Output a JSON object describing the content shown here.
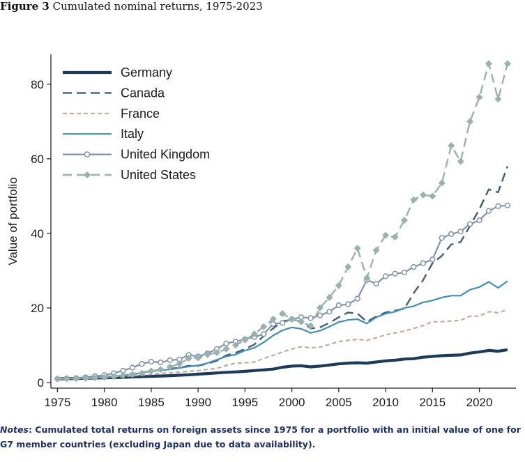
{
  "figure": {
    "label": "Figure 3",
    "title": "Cumulated nominal returns, 1975-2023"
  },
  "notes": {
    "label": "Notes",
    "text": ": Cumulated total returns on foreign assets since 1975 for a portfolio with an initial value of one for G7 member countries (excluding Japan due to data availability)."
  },
  "chart_data": {
    "type": "line",
    "title": "",
    "xlabel": "",
    "ylabel": "Value of portfolio",
    "xlim": [
      1974.3,
      2023.9
    ],
    "ylim": [
      -1.5,
      88
    ],
    "xticks": [
      1975,
      1980,
      1985,
      1990,
      1995,
      2000,
      2005,
      2010,
      2015,
      2020
    ],
    "yticks": [
      0,
      20,
      40,
      60,
      80
    ],
    "grid": false,
    "legend_position": "top-left",
    "x": [
      1975,
      1976,
      1977,
      1978,
      1979,
      1980,
      1981,
      1982,
      1983,
      1984,
      1985,
      1986,
      1987,
      1988,
      1989,
      1990,
      1991,
      1992,
      1993,
      1994,
      1995,
      1996,
      1997,
      1998,
      1999,
      2000,
      2001,
      2002,
      2003,
      2004,
      2005,
      2006,
      2007,
      2008,
      2009,
      2010,
      2011,
      2012,
      2013,
      2014,
      2015,
      2016,
      2017,
      2018,
      2019,
      2020,
      2021,
      2022,
      2023
    ],
    "series": [
      {
        "name": "Germany",
        "color": "#1b3a5c",
        "style": "solid",
        "marker": "none",
        "values": [
          1.0,
          1.05,
          1.1,
          1.15,
          1.2,
          1.27,
          1.32,
          1.4,
          1.5,
          1.58,
          1.67,
          1.76,
          1.84,
          1.95,
          2.08,
          2.25,
          2.4,
          2.58,
          2.75,
          2.85,
          3.0,
          3.2,
          3.4,
          3.6,
          4.1,
          4.4,
          4.5,
          4.2,
          4.4,
          4.7,
          5.0,
          5.2,
          5.3,
          5.2,
          5.5,
          5.8,
          6.0,
          6.3,
          6.4,
          6.8,
          7.0,
          7.2,
          7.3,
          7.4,
          7.9,
          8.2,
          8.6,
          8.4,
          8.8
        ]
      },
      {
        "name": "Canada",
        "color": "#3e5f7c",
        "style": "dash",
        "marker": "none",
        "values": [
          1.0,
          1.1,
          1.25,
          1.35,
          1.45,
          1.6,
          1.7,
          1.9,
          2.3,
          2.7,
          3.1,
          3.4,
          3.7,
          4.0,
          4.5,
          4.5,
          5.1,
          5.8,
          7.3,
          8.0,
          9.0,
          10.2,
          12.5,
          14.5,
          16.5,
          16.8,
          16.5,
          14.5,
          14.8,
          16.0,
          17.5,
          18.8,
          18.5,
          16.3,
          17.7,
          18.8,
          19.3,
          19.8,
          24.0,
          27.5,
          32.0,
          34.0,
          37.0,
          37.7,
          42.0,
          46.5,
          51.8,
          51.0,
          58.0
        ]
      },
      {
        "name": "France",
        "color": "#c4a9a3",
        "style": "shortdash",
        "marker": "none",
        "values": [
          1.0,
          1.05,
          1.12,
          1.2,
          1.3,
          1.4,
          1.5,
          1.62,
          1.8,
          2.0,
          2.2,
          2.5,
          2.6,
          2.8,
          3.0,
          3.2,
          3.5,
          3.8,
          4.6,
          5.2,
          5.3,
          5.5,
          6.5,
          7.3,
          8.2,
          9.0,
          9.6,
          9.3,
          9.5,
          10.2,
          11.0,
          11.3,
          11.6,
          11.3,
          12.0,
          12.8,
          13.3,
          13.8,
          14.5,
          15.3,
          16.3,
          16.3,
          16.5,
          16.7,
          17.8,
          17.8,
          19.0,
          18.7,
          19.5
        ]
      },
      {
        "name": "Italy",
        "color": "#3b8fba",
        "style": "solid",
        "marker": "none",
        "values": [
          1.0,
          1.08,
          1.16,
          1.25,
          1.35,
          1.5,
          1.7,
          1.9,
          2.2,
          2.6,
          3.0,
          3.3,
          3.5,
          3.9,
          4.3,
          4.6,
          5.2,
          6.1,
          7.0,
          7.5,
          8.6,
          9.3,
          10.8,
          12.6,
          14.0,
          14.8,
          14.4,
          13.3,
          13.9,
          15.0,
          16.2,
          16.8,
          17.0,
          15.8,
          17.5,
          18.5,
          19.0,
          20.0,
          20.5,
          21.5,
          22.0,
          22.8,
          23.3,
          23.3,
          24.9,
          25.6,
          27.0,
          25.4,
          27.2
        ]
      },
      {
        "name": "United Kingdom",
        "color": "#8292ae",
        "style": "solid",
        "marker": "circle",
        "values": [
          1.0,
          1.1,
          1.2,
          1.4,
          1.7,
          2.0,
          2.5,
          3.2,
          4.0,
          5.0,
          5.6,
          5.4,
          6.0,
          6.2,
          7.4,
          7.0,
          7.8,
          9.0,
          10.5,
          11.0,
          11.6,
          12.2,
          13.0,
          15.7,
          16.0,
          17.0,
          17.5,
          17.3,
          18.0,
          19.0,
          20.7,
          21.0,
          22.5,
          27.5,
          26.5,
          28.5,
          29.2,
          29.5,
          31.0,
          32.0,
          33.0,
          38.8,
          39.8,
          40.5,
          42.5,
          43.5,
          46.0,
          47.3,
          47.5
        ]
      },
      {
        "name": "United States",
        "color": "#98b3ac",
        "style": "dash",
        "marker": "diamond",
        "values": [
          1.0,
          1.05,
          1.1,
          1.15,
          1.25,
          1.4,
          1.6,
          1.9,
          2.2,
          2.5,
          3.1,
          3.5,
          4.2,
          5.0,
          6.5,
          6.6,
          7.5,
          8.0,
          9.0,
          10.0,
          11.4,
          13.0,
          15.0,
          17.0,
          18.5,
          17.0,
          16.3,
          15.2,
          20.0,
          22.8,
          26.0,
          31.0,
          36.0,
          28.0,
          35.5,
          39.5,
          39.0,
          43.5,
          49.0,
          50.3,
          50.0,
          53.5,
          63.5,
          59.3,
          70.0,
          76.5,
          85.5,
          76.0,
          85.5
        ]
      }
    ]
  }
}
